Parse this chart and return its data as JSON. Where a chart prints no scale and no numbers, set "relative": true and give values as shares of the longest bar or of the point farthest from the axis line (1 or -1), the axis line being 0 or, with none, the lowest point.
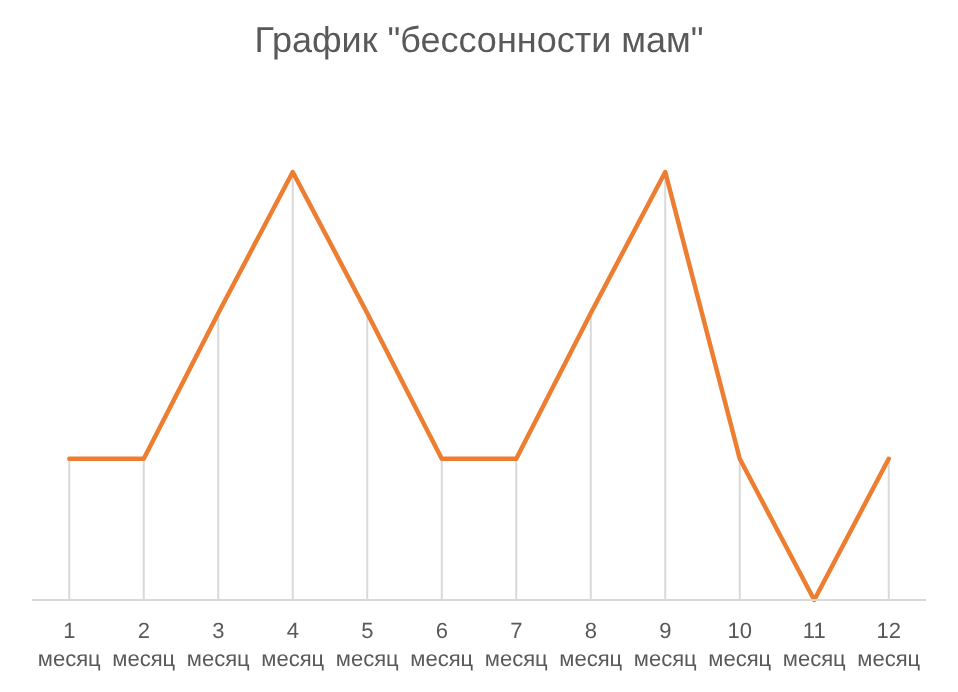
{
  "chart_data": {
    "type": "line",
    "title": "График \"бессонности мам\"",
    "relative": true,
    "categories": [
      "1 месяц",
      "2 месяц",
      "3 месяц",
      "4 месяц",
      "5 месяц",
      "6 месяц",
      "7 месяц",
      "8 месяц",
      "9 месяц",
      "10 месяц",
      "11 месяц",
      "12 месяц"
    ],
    "series": [
      {
        "type": "bar",
        "color": "#d9d9d9",
        "values": [
          0.33,
          0.33,
          0.67,
          1,
          0.67,
          0.33,
          0.33,
          0.67,
          1,
          0.33,
          0,
          0.33
        ]
      },
      {
        "color": "#ed7d31",
        "values": [
          0.33,
          0.33,
          0.67,
          1,
          0.67,
          0.33,
          0.33,
          0.67,
          1,
          0.33,
          0,
          0.33
        ]
      }
    ],
    "marker": "none"
  }
}
